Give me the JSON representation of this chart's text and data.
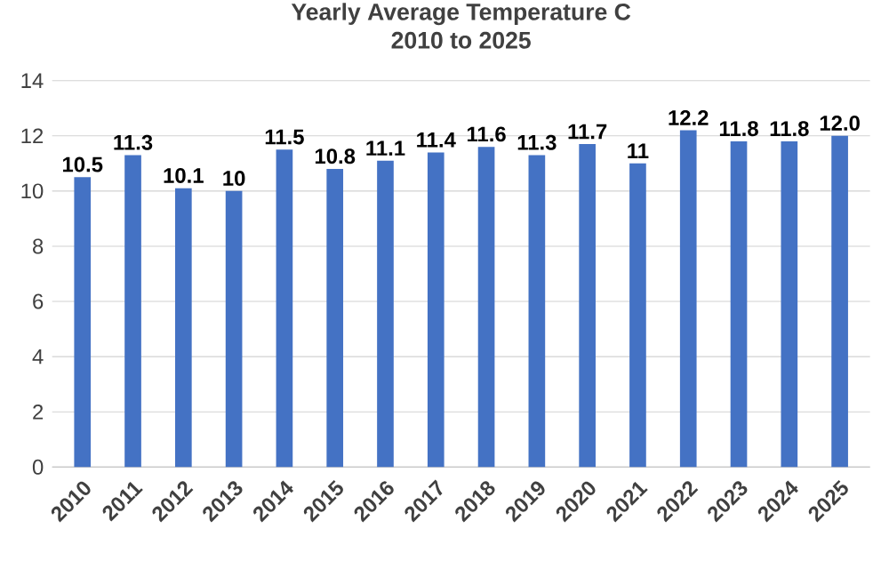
{
  "chart_data": {
    "type": "bar",
    "title": "Yearly Average Temperature C",
    "subtitle": "2010 to 2025",
    "categories": [
      "2010",
      "2011",
      "2012",
      "2013",
      "2014",
      "2015",
      "2016",
      "2017",
      "2018",
      "2019",
      "2020",
      "2021",
      "2022",
      "2023",
      "2024",
      "2025"
    ],
    "values": [
      10.5,
      11.3,
      10.1,
      10,
      11.5,
      10.8,
      11.1,
      11.4,
      11.6,
      11.3,
      11.7,
      11,
      12.2,
      11.8,
      11.8,
      12.0
    ],
    "value_labels": [
      "10.5",
      "11.3",
      "10.1",
      "10",
      "11.5",
      "10.8",
      "11.1",
      "11.4",
      "11.6",
      "11.3",
      "11.7",
      "11",
      "12.2",
      "11.8",
      "11.8",
      "12.0"
    ],
    "color": "#4472c4",
    "ylim": [
      0,
      14
    ],
    "yticks": [
      0,
      2,
      4,
      6,
      8,
      10,
      12,
      14
    ],
    "grid": "y"
  }
}
